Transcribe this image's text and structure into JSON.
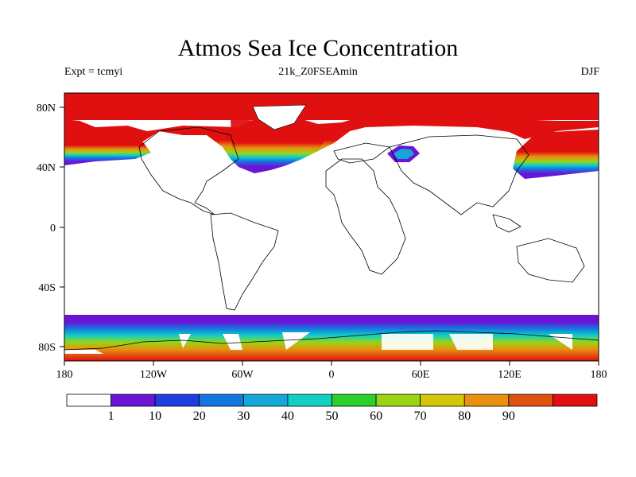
{
  "title": "Atmos Sea Ice Concentration",
  "subtitle_left": "Expt = tcmyi",
  "subtitle_center": "21k_Z0FSEAmin",
  "subtitle_right": "DJF",
  "map": {
    "lat_ticks": [
      "80N",
      "40N",
      "0",
      "40S",
      "80S"
    ],
    "lon_ticks": [
      "180",
      "120W",
      "60W",
      "0",
      "60E",
      "120E",
      "180"
    ]
  },
  "colorbar": {
    "labels": [
      "1",
      "10",
      "20",
      "30",
      "40",
      "50",
      "60",
      "70",
      "80",
      "90"
    ],
    "colors": [
      "#ffffff",
      "#6a14d6",
      "#1f3ee0",
      "#1476e0",
      "#13a8d8",
      "#10d0c4",
      "#2bd02a",
      "#9ad414",
      "#d6c60a",
      "#e89010",
      "#e0500f",
      "#e01010"
    ]
  }
}
